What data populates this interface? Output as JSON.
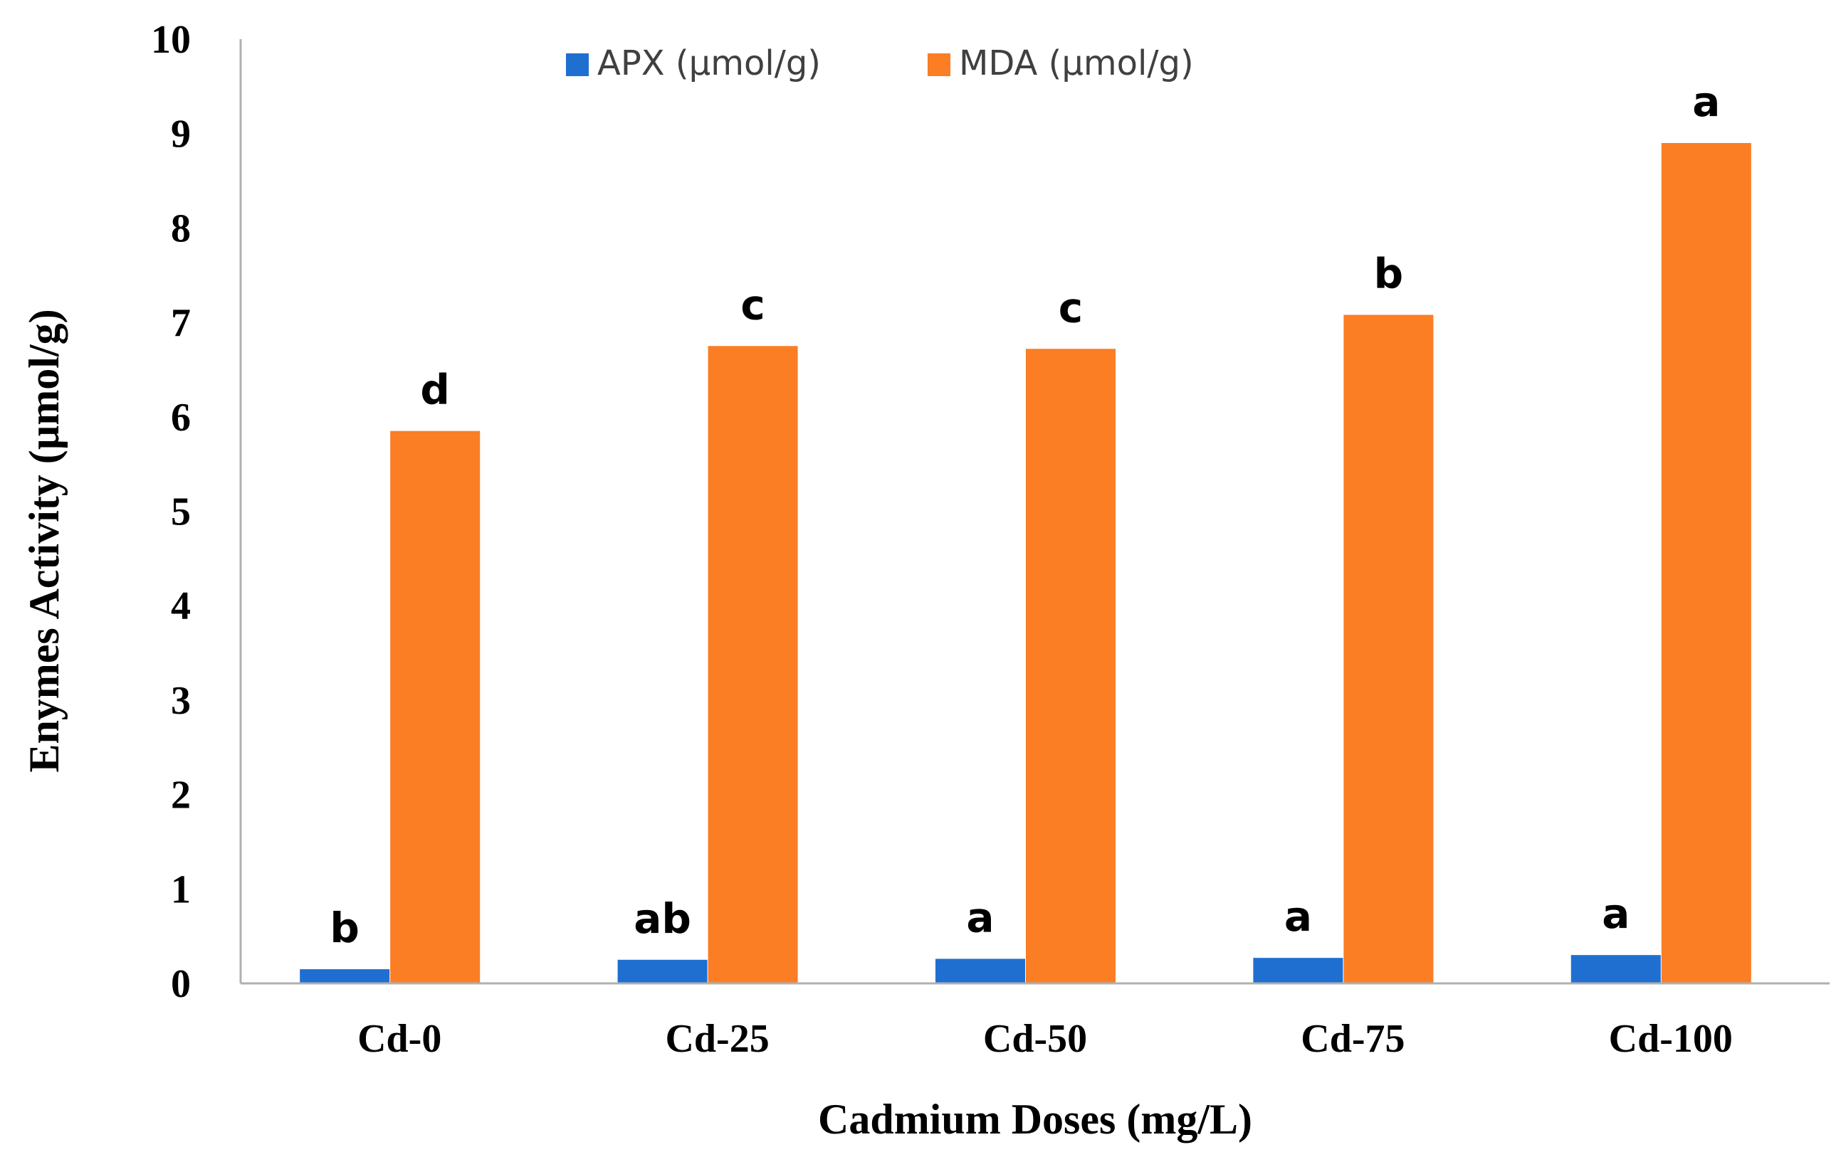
{
  "chart_data": {
    "type": "bar",
    "title": "",
    "xlabel": "Cadmium Doses (mg/L)",
    "ylabel": "Enymes Activity (µmol/g)",
    "ylim": [
      0,
      10
    ],
    "yticks": [
      "0",
      "1",
      "2",
      "3",
      "4",
      "5",
      "6",
      "7",
      "8",
      "9",
      "10"
    ],
    "grid": false,
    "legend_position": "top-center",
    "categories": [
      "Cd-0",
      "Cd-25",
      "Cd-50",
      "Cd-75",
      "Cd-100"
    ],
    "series": [
      {
        "name": "APX (µmol/g)",
        "color": "#1f6fd1",
        "values": [
          0.15,
          0.25,
          0.26,
          0.27,
          0.3
        ],
        "labels": [
          "b",
          "ab",
          "a",
          "a",
          "a"
        ]
      },
      {
        "name": "MDA (µmol/g)",
        "color": "#fb7d24",
        "values": [
          5.85,
          6.75,
          6.72,
          7.08,
          8.9
        ],
        "labels": [
          "d",
          "c",
          "c",
          "b",
          "a"
        ]
      }
    ]
  }
}
